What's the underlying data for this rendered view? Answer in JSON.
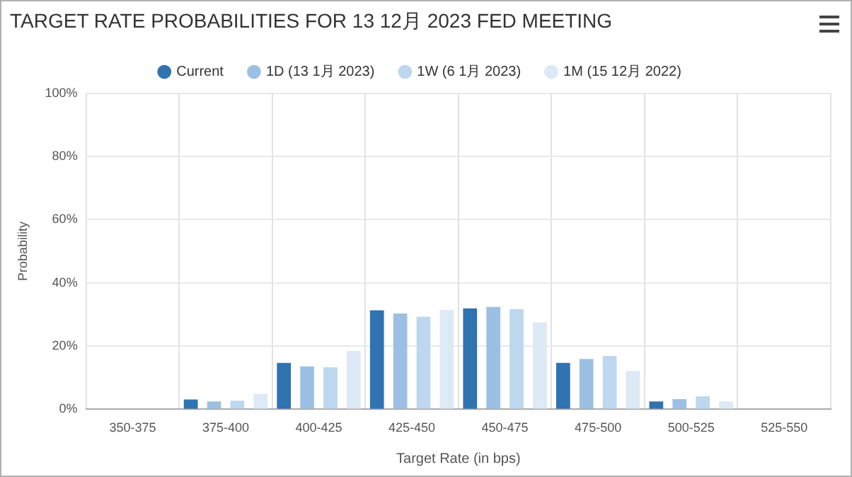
{
  "chart_data": {
    "type": "bar",
    "title": "TARGET RATE PROBABILITIES FOR 13 12月 2023 FED MEETING",
    "xlabel": "Target Rate (in bps)",
    "ylabel": "Probability",
    "categories": [
      "350-375",
      "375-400",
      "400-425",
      "425-450",
      "450-475",
      "475-500",
      "500-525",
      "525-550"
    ],
    "series": [
      {
        "name": "Current",
        "color": "#2f73b1",
        "values": [
          0,
          3.1,
          14.7,
          31.3,
          31.9,
          14.7,
          2.5,
          0
        ]
      },
      {
        "name": "1D (13 1月 2023)",
        "color": "#9cc0e3",
        "values": [
          0,
          2.5,
          13.6,
          30.3,
          32.4,
          15.9,
          3.2,
          0
        ]
      },
      {
        "name": "1W (6 1月 2023)",
        "color": "#bdd7ee",
        "values": [
          0,
          2.7,
          13.3,
          29.3,
          31.7,
          16.9,
          4.1,
          0
        ]
      },
      {
        "name": "1M (15 12月 2022)",
        "color": "#dde9f5",
        "values": [
          null,
          4.9,
          18.5,
          31.5,
          27.5,
          12.1,
          2.5,
          null
        ]
      }
    ],
    "ylim": [
      0,
      100
    ],
    "yticks": [
      {
        "value": 0,
        "label": "0%"
      },
      {
        "value": 20,
        "label": "20%"
      },
      {
        "value": 40,
        "label": "40%"
      },
      {
        "value": 60,
        "label": "60%"
      },
      {
        "value": 80,
        "label": "80%"
      },
      {
        "value": 100,
        "label": "100%"
      }
    ],
    "grid": true,
    "legend": "top",
    "marker": "circle"
  }
}
